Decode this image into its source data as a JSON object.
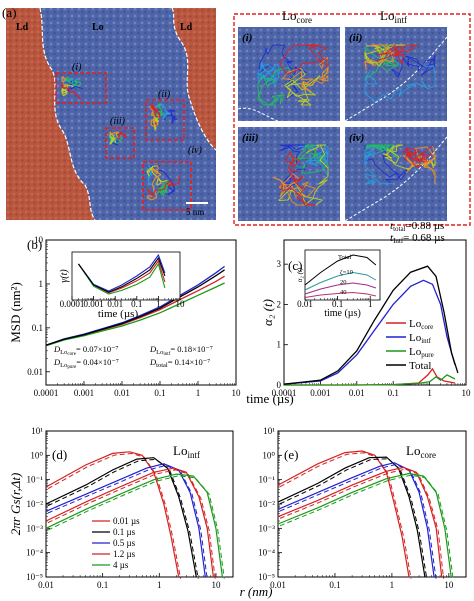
{
  "panel_a": {
    "label": "(a)",
    "phase_left": "Ld",
    "phase_mid": "Lo",
    "phase_right": "Ld",
    "scale_bar": "5 nm",
    "box_labels": [
      "(i)",
      "(ii)",
      "(iii)",
      "(iv)"
    ],
    "inset_header_core": "Lo",
    "inset_header_core_sub": "core",
    "inset_header_intf": "Lo",
    "inset_header_intf_sub": "intf",
    "inset_labels": [
      "(i)",
      "(ii)",
      "(iii)",
      "(iv)"
    ],
    "colors": {
      "ld": "#b8563f",
      "lo": "#4d64a8",
      "box": "#e02020"
    }
  },
  "chart_data": [
    {
      "id": "b",
      "type": "line",
      "panel_label": "(b)",
      "xlabel": "time (µs)",
      "ylabel": "MSD (nm²)",
      "xscale": "log",
      "yscale": "log",
      "xlim": [
        0.0001,
        10
      ],
      "ylim": [
        0.005,
        10
      ],
      "xticks": [
        "0.0001",
        "0.001",
        "0.01",
        "0.1",
        "1",
        "10"
      ],
      "yticks": [
        "0.01",
        "0.1",
        "1",
        "10"
      ],
      "series": [
        {
          "name": "Lo_core",
          "color": "#d62020",
          "x": [
            0.0001,
            0.0003,
            0.001,
            0.003,
            0.01,
            0.03,
            0.1,
            0.3,
            1,
            3,
            5
          ],
          "y": [
            0.04,
            0.055,
            0.07,
            0.09,
            0.12,
            0.17,
            0.26,
            0.42,
            0.7,
            1.15,
            1.5
          ]
        },
        {
          "name": "Lo_intf",
          "color": "#2020d0",
          "x": [
            0.0001,
            0.0003,
            0.001,
            0.003,
            0.01,
            0.03,
            0.1,
            0.3,
            1,
            3,
            5
          ],
          "y": [
            0.04,
            0.056,
            0.072,
            0.095,
            0.13,
            0.19,
            0.3,
            0.52,
            0.95,
            1.8,
            2.5
          ]
        },
        {
          "name": "Lo_pure",
          "color": "#1a9a1a",
          "x": [
            0.0001,
            0.0003,
            0.001,
            0.003,
            0.01,
            0.03,
            0.1,
            0.3,
            1,
            3,
            5
          ],
          "y": [
            0.039,
            0.053,
            0.066,
            0.085,
            0.11,
            0.15,
            0.22,
            0.34,
            0.55,
            0.85,
            1.05
          ]
        },
        {
          "name": "Total",
          "color": "#000000",
          "x": [
            0.0001,
            0.0003,
            0.001,
            0.003,
            0.01,
            0.03,
            0.1,
            0.3,
            1,
            3,
            5
          ],
          "y": [
            0.04,
            0.055,
            0.07,
            0.092,
            0.125,
            0.18,
            0.28,
            0.48,
            0.85,
            1.55,
            2.1
          ]
        }
      ],
      "annotations": [
        {
          "text": "D",
          "sub": "Lo",
          "sub2": "core",
          "rest": "= 0.07×10⁻⁷",
          "color": "#d62020"
        },
        {
          "text": "D",
          "sub": "Lo",
          "sub2": "pure",
          "rest": "= 0.04×10⁻⁷",
          "color": "#1a9a1a"
        },
        {
          "text": "D",
          "sub": "Lo",
          "sub2": "intf",
          "rest": "= 0.18×10⁻⁷",
          "color": "#2020d0"
        },
        {
          "text": "D",
          "sub": "total",
          "sub2": "",
          "rest": "= 0.14×10⁻⁷",
          "color": "#000000"
        }
      ],
      "inset": {
        "xlabel": "time (µs)",
        "ylabel": "γ(t)",
        "xticks": [
          "0.0001",
          "0.001",
          "0.01",
          "0.1",
          "1",
          "10"
        ],
        "series": [
          {
            "name": "Lo_core",
            "color": "#d62020",
            "x": [
              0.0002,
              0.001,
              0.005,
              0.02,
              0.1,
              0.4,
              1,
              2
            ],
            "y": [
              0.9,
              0.55,
              0.42,
              0.5,
              0.62,
              0.75,
              0.95,
              0.6
            ]
          },
          {
            "name": "Lo_intf",
            "color": "#2020d0",
            "x": [
              0.0002,
              0.001,
              0.005,
              0.02,
              0.1,
              0.4,
              1,
              2
            ],
            "y": [
              0.9,
              0.56,
              0.45,
              0.55,
              0.7,
              0.85,
              1.05,
              0.75
            ]
          },
          {
            "name": "Lo_pure",
            "color": "#1a9a1a",
            "x": [
              0.0002,
              0.001,
              0.005,
              0.02,
              0.1,
              0.4,
              1,
              2
            ],
            "y": [
              0.9,
              0.53,
              0.4,
              0.46,
              0.56,
              0.68,
              0.9,
              0.5
            ]
          },
          {
            "name": "Total",
            "color": "#000000",
            "x": [
              0.0002,
              0.001,
              0.005,
              0.02,
              0.1,
              0.4,
              1,
              2
            ],
            "y": [
              0.9,
              0.55,
              0.43,
              0.52,
              0.66,
              0.8,
              1.0,
              0.7
            ]
          }
        ],
        "xlim": [
          0.0001,
          10
        ],
        "ylim": [
          0.3,
          1.1
        ]
      }
    },
    {
      "id": "c",
      "type": "line",
      "panel_label": "(c)",
      "xlabel": "time (µs)",
      "ylabel": "α₂ (t)",
      "xscale": "log",
      "xlim": [
        0.0001,
        10
      ],
      "ylim": [
        0,
        3.6
      ],
      "xticks": [
        "0.0001",
        "0.001",
        "0.01",
        "0.1",
        "1",
        "10"
      ],
      "yticks": [
        "0",
        "1",
        "2",
        "3"
      ],
      "annotations": [
        {
          "text": "t",
          "sub": "total",
          "rest": "=0.88 µs",
          "color": "#000000"
        },
        {
          "text": "t",
          "sub": "Intf",
          "rest": "= 0.68 µs",
          "color": "#2020d0"
        }
      ],
      "legend": {
        "position": "right",
        "entries": [
          {
            "name": "Lo",
            "sub": "core",
            "color": "#d62020"
          },
          {
            "name": "Lo",
            "sub": "intf",
            "color": "#2020d0"
          },
          {
            "name": "Lo",
            "sub": "pure",
            "color": "#1a9a1a"
          },
          {
            "name": "Total",
            "sub": "",
            "color": "#000000"
          }
        ]
      },
      "series": [
        {
          "name": "Lo_core",
          "color": "#d62020",
          "x": [
            0.0001,
            0.01,
            0.1,
            0.5,
            0.9,
            1.2,
            1.6,
            2.5,
            5
          ],
          "y": [
            0,
            0,
            0.01,
            0.05,
            0.25,
            0.4,
            0.2,
            0.1,
            0.05
          ]
        },
        {
          "name": "Lo_intf",
          "color": "#2020d0",
          "x": [
            0.0001,
            0.001,
            0.003,
            0.01,
            0.03,
            0.1,
            0.3,
            0.68,
            1.2,
            2,
            3,
            5
          ],
          "y": [
            0.02,
            0.1,
            0.3,
            0.75,
            1.35,
            2.0,
            2.45,
            2.6,
            2.5,
            2.0,
            1.2,
            0.5
          ]
        },
        {
          "name": "Lo_pure",
          "color": "#1a9a1a",
          "x": [
            0.0001,
            0.01,
            0.1,
            0.5,
            1,
            1.5,
            2,
            3,
            5
          ],
          "y": [
            0,
            0,
            0.01,
            0.04,
            0.08,
            0.2,
            0.12,
            0.25,
            0.15
          ]
        },
        {
          "name": "Total",
          "color": "#000000",
          "x": [
            0.0001,
            0.001,
            0.003,
            0.01,
            0.03,
            0.1,
            0.3,
            0.88,
            1.5,
            2.5,
            4,
            6
          ],
          "y": [
            0.02,
            0.12,
            0.35,
            0.85,
            1.6,
            2.35,
            2.8,
            2.95,
            2.7,
            1.8,
            0.8,
            0.3
          ]
        }
      ],
      "inset": {
        "xlabel": "time (µs)",
        "ylabel": "α₂ (t)",
        "xticks": [
          "0.01",
          "0.1",
          "1"
        ],
        "xlim": [
          0.01,
          2
        ],
        "ylim": [
          0,
          1
        ],
        "labels": [
          "Total",
          "ζ=10",
          "20",
          "40"
        ],
        "label_colors": [
          "#000000",
          "#2a9aa0",
          "#c0306a",
          "#c0306a"
        ],
        "series": [
          {
            "name": "Total",
            "color": "#000000",
            "x": [
              0.01,
              0.03,
              0.1,
              0.3,
              0.8,
              1.5
            ],
            "y": [
              0.3,
              0.55,
              0.78,
              0.9,
              0.85,
              0.7
            ]
          },
          {
            "name": "ζ=10",
            "color": "#2a9aa0",
            "x": [
              0.01,
              0.03,
              0.1,
              0.3,
              0.8,
              1.5
            ],
            "y": [
              0.2,
              0.35,
              0.48,
              0.55,
              0.5,
              0.4
            ]
          },
          {
            "name": "20",
            "color": "#a02a8a",
            "x": [
              0.01,
              0.03,
              0.1,
              0.3,
              0.8,
              1.5
            ],
            "y": [
              0.12,
              0.22,
              0.3,
              0.34,
              0.3,
              0.24
            ]
          },
          {
            "name": "40",
            "color": "#c0306a",
            "x": [
              0.01,
              0.03,
              0.1,
              0.3,
              0.8,
              1.5
            ],
            "y": [
              0.05,
              0.1,
              0.13,
              0.15,
              0.12,
              0.08
            ]
          }
        ]
      }
    },
    {
      "id": "d",
      "type": "line",
      "panel_label": "(d)",
      "title_main": "Lo",
      "title_sub": "intf",
      "title_color": "#2020d0",
      "xlabel": "r (nm)",
      "ylabel": "2πr Gs(r,Δt)",
      "xscale": "log",
      "yscale": "log",
      "xlim": [
        0.01,
        20
      ],
      "ylim": [
        1e-05,
        10
      ],
      "xticks": [
        "0.01",
        "0.1",
        "1",
        "10"
      ],
      "yticks": [
        "10⁻⁵",
        "10⁻⁴",
        "10⁻³",
        "10⁻²",
        "10⁻¹",
        "10⁰",
        "10¹"
      ],
      "legend": {
        "position": "bottom-left",
        "entries": [
          "0.01 µs",
          "0.1 µs",
          "0.5 µs",
          "1.2 µs",
          "4 µs"
        ]
      },
      "series": [
        {
          "name": "0.01 µs",
          "color": "#d62020",
          "x": [
            0.01,
            0.05,
            0.15,
            0.3,
            0.5,
            0.8,
            1.2,
            1.6,
            2.2
          ],
          "y": [
            0.05,
            0.4,
            1.2,
            1.4,
            1.0,
            0.2,
            0.01,
            0.0005,
            1e-05
          ]
        },
        {
          "name": "0.1 µs",
          "color": "#000000",
          "x": [
            0.01,
            0.05,
            0.15,
            0.4,
            0.8,
            1.4,
            2.2,
            3.2,
            4.5
          ],
          "y": [
            0.01,
            0.06,
            0.25,
            0.7,
            0.8,
            0.3,
            0.02,
            0.0008,
            1e-05
          ]
        },
        {
          "name": "0.5 µs",
          "color": "#2020d0",
          "x": [
            0.01,
            0.05,
            0.2,
            0.6,
            1.2,
            2.2,
            3.5,
            5,
            6.5
          ],
          "y": [
            0.005,
            0.025,
            0.1,
            0.3,
            0.45,
            0.25,
            0.03,
            0.001,
            1e-05
          ]
        },
        {
          "name": "1.2 µs",
          "color": "#d62020",
          "x": [
            0.01,
            0.05,
            0.2,
            0.8,
            1.8,
            3,
            5,
            7,
            9
          ],
          "y": [
            0.002,
            0.012,
            0.05,
            0.2,
            0.3,
            0.2,
            0.02,
            0.001,
            1e-05
          ]
        },
        {
          "name": "4 µs",
          "color": "#1a9a1a",
          "x": [
            0.01,
            0.05,
            0.2,
            0.8,
            2,
            4,
            7,
            10,
            13
          ],
          "y": [
            0.001,
            0.006,
            0.025,
            0.1,
            0.17,
            0.14,
            0.03,
            0.001,
            1e-05
          ]
        }
      ]
    },
    {
      "id": "e",
      "type": "line",
      "panel_label": "(e)",
      "title_main": "Lo",
      "title_sub": "core",
      "title_color": "#d62020",
      "xlabel": "r (nm)",
      "xscale": "log",
      "yscale": "log",
      "xlim": [
        0.01,
        20
      ],
      "ylim": [
        1e-05,
        10
      ],
      "xticks": [
        "0.01",
        "0.1",
        "1",
        "10"
      ],
      "yticks": [
        "10⁻⁵",
        "10⁻⁴",
        "10⁻³",
        "10⁻²",
        "10⁻¹",
        "10⁰",
        "10¹"
      ],
      "series": [
        {
          "name": "0.01 µs",
          "color": "#d62020",
          "x": [
            0.01,
            0.05,
            0.15,
            0.3,
            0.5,
            0.8,
            1.1,
            1.5,
            2
          ],
          "y": [
            0.06,
            0.45,
            1.3,
            1.5,
            1.0,
            0.2,
            0.01,
            0.0005,
            1e-05
          ]
        },
        {
          "name": "0.1 µs",
          "color": "#000000",
          "x": [
            0.01,
            0.05,
            0.15,
            0.4,
            0.8,
            1.3,
            2,
            2.8,
            3.8
          ],
          "y": [
            0.012,
            0.07,
            0.3,
            0.8,
            0.85,
            0.3,
            0.02,
            0.0008,
            1e-05
          ]
        },
        {
          "name": "0.5 µs",
          "color": "#2020d0",
          "x": [
            0.01,
            0.05,
            0.2,
            0.6,
            1.1,
            2,
            3,
            4.2,
            5.5
          ],
          "y": [
            0.006,
            0.03,
            0.12,
            0.35,
            0.5,
            0.25,
            0.03,
            0.001,
            1e-05
          ]
        },
        {
          "name": "1.2 µs",
          "color": "#d62020",
          "x": [
            0.01,
            0.05,
            0.2,
            0.8,
            1.6,
            2.7,
            4.2,
            6,
            7.5
          ],
          "y": [
            0.003,
            0.014,
            0.06,
            0.22,
            0.32,
            0.2,
            0.02,
            0.001,
            1e-05
          ]
        },
        {
          "name": "4 µs",
          "color": "#1a9a1a",
          "x": [
            0.01,
            0.05,
            0.2,
            0.8,
            2,
            3.6,
            6,
            8.5,
            11
          ],
          "y": [
            0.0015,
            0.007,
            0.03,
            0.11,
            0.18,
            0.14,
            0.03,
            0.001,
            1e-05
          ]
        }
      ]
    }
  ]
}
